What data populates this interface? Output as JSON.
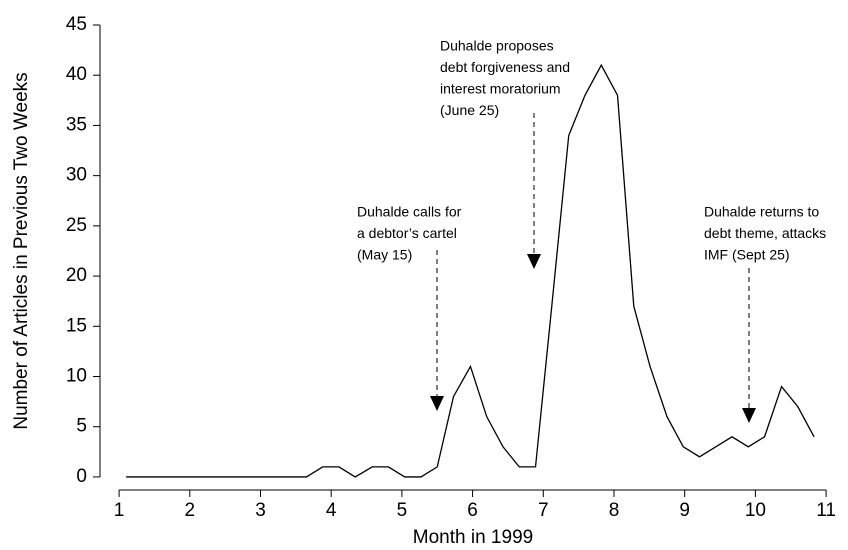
{
  "chart_data": {
    "type": "line",
    "xlabel": "Month in 1999",
    "ylabel": "Number of Articles in Previous Two Weeks",
    "x": [
      1.1,
      1.33,
      1.56,
      1.8,
      2.03,
      2.26,
      2.49,
      2.72,
      2.95,
      3.19,
      3.42,
      3.65,
      3.88,
      4.11,
      4.34,
      4.58,
      4.81,
      5.04,
      5.27,
      5.5,
      5.73,
      5.97,
      6.2,
      6.43,
      6.66,
      6.89,
      7.12,
      7.36,
      7.59,
      7.82,
      8.05,
      8.28,
      8.51,
      8.75,
      8.98,
      9.21,
      9.44,
      9.67,
      9.9,
      10.13,
      10.37,
      10.6,
      10.83
    ],
    "values": [
      0,
      0,
      0,
      0,
      0,
      0,
      0,
      0,
      0,
      0,
      0,
      0,
      1,
      1,
      0,
      1,
      1,
      0,
      0,
      1,
      8,
      11,
      6,
      3,
      1,
      1,
      17,
      34,
      38,
      41,
      38,
      17,
      11,
      6,
      3,
      2,
      3,
      4,
      3,
      4,
      9,
      7,
      4
    ],
    "color": "#000000",
    "xlim": [
      0.73,
      11.31
    ],
    "xticks": [
      1,
      2,
      3,
      4,
      5,
      6,
      7,
      8,
      9,
      10,
      11
    ],
    "ylim": [
      -1.3,
      45
    ],
    "yticks": [
      0,
      5,
      10,
      15,
      20,
      25,
      30,
      35,
      40,
      45
    ],
    "grid": false,
    "annotations": [
      {
        "lines": [
          "Duhalde calls for",
          "a debtor’s cartel",
          "(May 15)"
        ]
      },
      {
        "lines": [
          "Duhalde proposes",
          "debt forgiveness and",
          "interest moratorium",
          "(June 25)"
        ]
      },
      {
        "lines": [
          "Duhalde returns to",
          "debt theme, attacks",
          "IMF (Sept 25)"
        ]
      }
    ]
  }
}
